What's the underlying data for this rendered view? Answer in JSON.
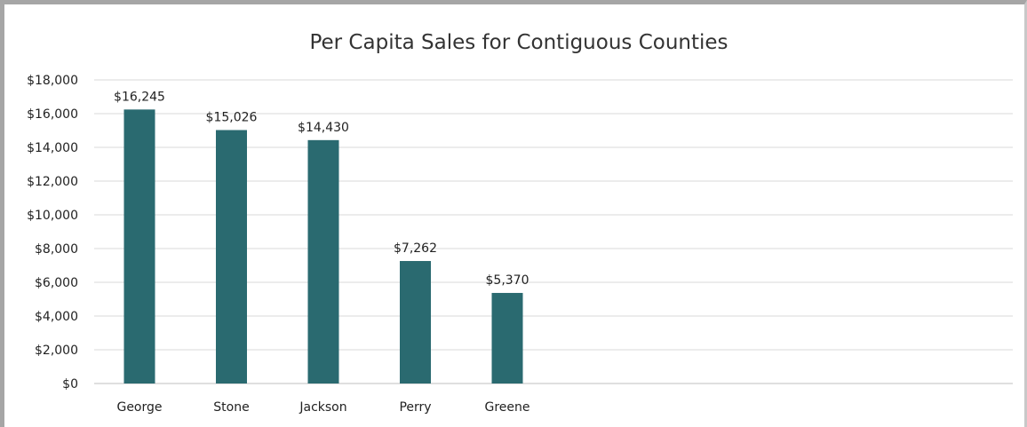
{
  "chart_data": {
    "type": "bar",
    "title": "Per Capita Sales for Contiguous Counties",
    "xlabel": "",
    "ylabel": "",
    "categories": [
      "George",
      "Stone",
      "Jackson",
      "Perry",
      "Greene"
    ],
    "values": [
      16245,
      15026,
      14430,
      7262,
      5370
    ],
    "data_labels": [
      "$16,245",
      "$15,026",
      "$14,430",
      "$7,262",
      "$5,370"
    ],
    "ylim": [
      0,
      18000
    ],
    "yticks": [
      0,
      2000,
      4000,
      6000,
      8000,
      10000,
      12000,
      14000,
      16000,
      18000
    ],
    "ytick_labels": [
      "$0",
      "$2,000",
      "$4,000",
      "$6,000",
      "$8,000",
      "$10,000",
      "$12,000",
      "$14,000",
      "$16,000",
      "$18,000"
    ],
    "grid": true,
    "legend": "none",
    "bar_color": "#2a6a70"
  }
}
